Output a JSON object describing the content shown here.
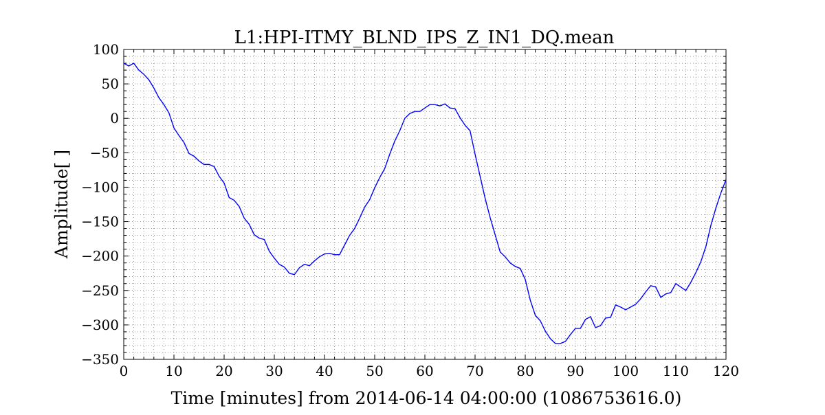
{
  "chart_data": {
    "type": "line",
    "title": "L1:HPI-ITMY_BLND_IPS_Z_IN1_DQ.mean",
    "xlabel": "Time [minutes] from 2014-06-14 04:00:00 (1086753616.0)",
    "ylabel": "Amplitude[ ]",
    "xlim": [
      0,
      120
    ],
    "ylim": [
      -350,
      100
    ],
    "xticks": [
      0,
      10,
      20,
      30,
      40,
      50,
      60,
      70,
      80,
      90,
      100,
      110,
      120
    ],
    "xtick_labels": [
      "0",
      "10",
      "20",
      "30",
      "40",
      "50",
      "60",
      "70",
      "80",
      "90",
      "100",
      "110",
      "120"
    ],
    "yticks": [
      100,
      50,
      0,
      -50,
      -100,
      -150,
      -200,
      -250,
      -300,
      -350
    ],
    "ytick_labels": [
      "100",
      "50",
      "0",
      "−50",
      "−100",
      "−150",
      "−200",
      "−250",
      "−300",
      "−350"
    ],
    "grid": true,
    "line_color": "#0000ff",
    "series": [
      {
        "x": [
          0,
          1,
          2,
          3,
          4,
          5,
          6,
          7,
          8,
          9,
          10,
          11,
          12,
          13,
          14,
          15,
          16,
          17,
          18,
          19,
          20,
          21,
          22,
          23,
          24,
          25,
          26,
          27,
          28,
          29,
          30,
          31,
          32,
          33,
          34,
          35,
          36,
          37,
          38,
          39,
          40,
          41,
          42,
          43,
          44,
          45,
          46,
          47,
          48,
          49,
          50,
          51,
          52,
          53,
          54,
          55,
          56,
          57,
          58,
          59,
          60,
          61,
          62,
          63,
          64,
          65,
          66,
          67,
          68,
          69,
          70,
          71,
          72,
          73,
          74,
          75,
          76,
          77,
          78,
          79,
          80,
          81,
          82,
          83,
          84,
          85,
          86,
          87,
          88,
          89,
          90,
          91,
          92,
          93,
          94,
          95,
          96,
          97,
          98,
          99,
          100,
          101,
          102,
          103,
          104,
          105,
          106,
          107,
          108,
          109,
          110,
          111,
          112,
          113,
          114,
          115,
          116,
          117,
          118,
          119,
          120
        ],
        "y": [
          80,
          76,
          80,
          70,
          64,
          56,
          44,
          30,
          20,
          8,
          -14,
          -25,
          -35,
          -51,
          -55,
          -62,
          -67,
          -67,
          -70,
          -84,
          -94,
          -115,
          -119,
          -128,
          -145,
          -154,
          -169,
          -174,
          -176,
          -193,
          -203,
          -212,
          -216,
          -225,
          -227,
          -217,
          -212,
          -214,
          -207,
          -201,
          -197,
          -196,
          -198,
          -198,
          -184,
          -170,
          -160,
          -145,
          -129,
          -118,
          -101,
          -86,
          -73,
          -52,
          -33,
          -18,
          0,
          7,
          10,
          10,
          15,
          20,
          20,
          18,
          21,
          15,
          14,
          1,
          -10,
          -18,
          -52,
          -84,
          -116,
          -144,
          -169,
          -194,
          -201,
          -210,
          -215,
          -218,
          -234,
          -264,
          -286,
          -294,
          -309,
          -320,
          -327,
          -327,
          -324,
          -314,
          -305,
          -305,
          -292,
          -288,
          -304,
          -301,
          -290,
          -289,
          -271,
          -274,
          -278,
          -274,
          -270,
          -262,
          -252,
          -243,
          -245,
          -260,
          -255,
          -253,
          -240,
          -245,
          -250,
          -238,
          -224,
          -208,
          -186,
          -155,
          -130,
          -108,
          -89
        ]
      }
    ]
  }
}
